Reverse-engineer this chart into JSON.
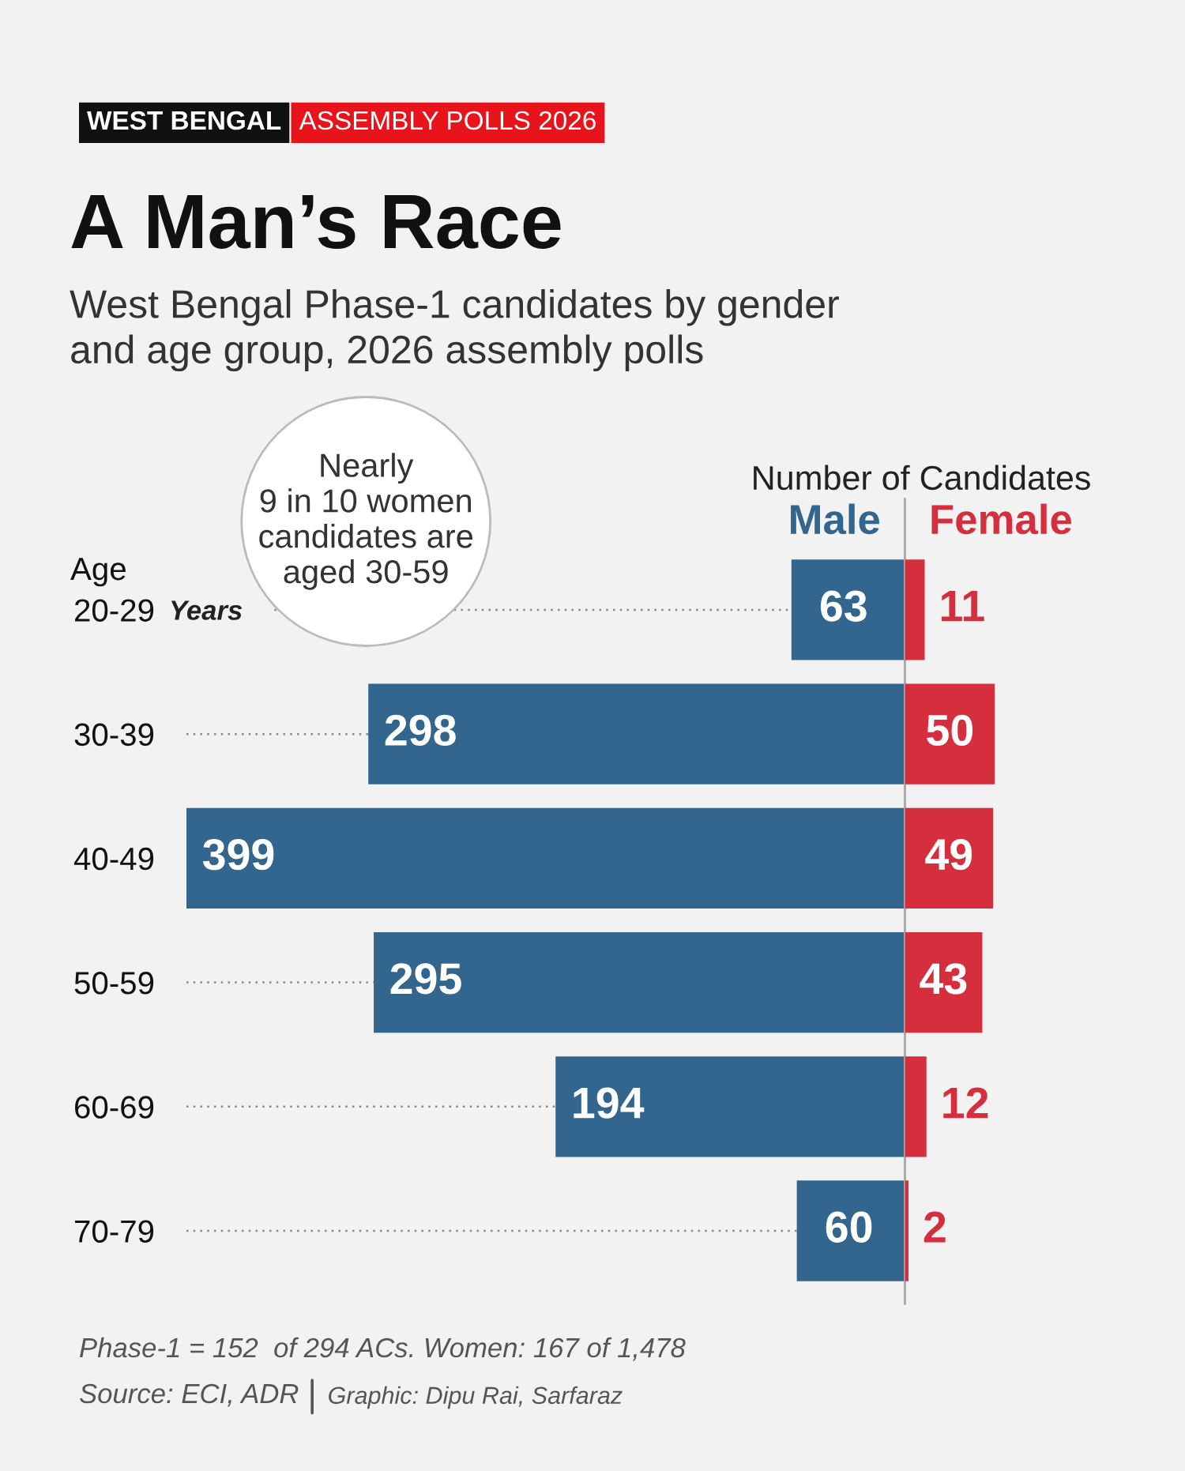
{
  "chart_data": [
    {
      "type": "bar",
      "orientation": "horizontal",
      "title": "A Man’s Race",
      "subtitle": "West Bengal Phase-1 candidates by gender\nand age group, 2026 assembly polls",
      "xlabel": "Number of Candidates",
      "ylabel": "Age",
      "categories": [
        "20-29",
        "30-39",
        "40-49",
        "50-59",
        "60-69",
        "70-79"
      ],
      "series": [
        {
          "name": "Male",
          "color": "#33668f",
          "values": [
            63,
            298,
            399,
            295,
            194,
            60
          ]
        }
      ],
      "xlim": [
        399,
        0
      ],
      "data_labels": true,
      "tick_labels": "y",
      "grid": "y",
      "annotations": [
        "WEST BENGAL",
        "ASSEMBLY POLLS 2026",
        "Nearly\n9 in 10 women\ncandidates are\naged 30-59",
        "Years",
        "Phase-1 = 152  of 294 ACs. Women: 167 of 1,478",
        "Source: ECI, ADR",
        "Graphic: Dipu Rai, Sarfaraz"
      ]
    },
    {
      "type": "bar",
      "orientation": "horizontal",
      "categories": [
        "20-29",
        "30-39",
        "40-49",
        "50-59",
        "60-69",
        "70-79"
      ],
      "series": [
        {
          "name": "Female",
          "color": "#d52f3e",
          "values": [
            11,
            50,
            49,
            43,
            12,
            2
          ]
        }
      ],
      "xlim": [
        0,
        50
      ],
      "data_labels": true,
      "tick_labels": false
    }
  ]
}
